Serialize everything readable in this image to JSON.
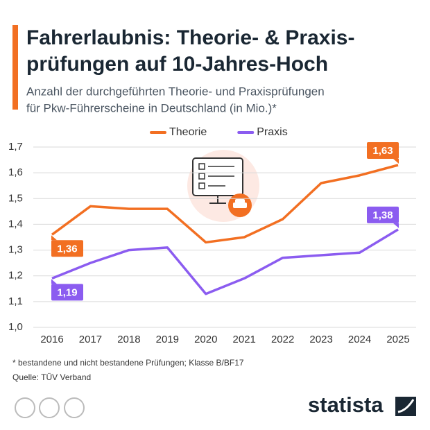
{
  "chart_data": {
    "type": "line",
    "title": [
      "Fahrerlaubnis: Theorie- & Praxis-",
      "prüfungen auf 10-Jahres-Hoch"
    ],
    "subtitle": [
      "Anzahl der durchgeführten Theorie- und Praxisprüfungen",
      "für Pkw-Führerscheine in Deutschland (in Mio.)*"
    ],
    "categories": [
      "2016",
      "2017",
      "2018",
      "2019",
      "2020",
      "2021",
      "2022",
      "2023",
      "2024",
      "2025"
    ],
    "series": [
      {
        "name": "Theorie",
        "color": "#f26f22",
        "values": [
          1.36,
          1.47,
          1.46,
          1.46,
          1.33,
          1.35,
          1.42,
          1.56,
          1.59,
          1.63
        ],
        "value_labels": [
          "1,36",
          null,
          null,
          null,
          null,
          null,
          null,
          null,
          null,
          "1,63"
        ]
      },
      {
        "name": "Praxis",
        "color": "#8b5cf0",
        "values": [
          1.19,
          1.25,
          1.3,
          1.31,
          1.13,
          1.19,
          1.27,
          1.28,
          1.29,
          1.38
        ],
        "value_labels": [
          "1,19",
          null,
          null,
          null,
          null,
          null,
          null,
          null,
          null,
          "1,38"
        ]
      }
    ],
    "ylim": [
      1.0,
      1.7
    ],
    "yticks": [
      {
        "value": 1.0,
        "label": "1,0"
      },
      {
        "value": 1.1,
        "label": "1,1"
      },
      {
        "value": 1.2,
        "label": "1,2"
      },
      {
        "value": 1.3,
        "label": "1,3"
      },
      {
        "value": 1.4,
        "label": "1,4"
      },
      {
        "value": 1.5,
        "label": "1,5"
      },
      {
        "value": 1.6,
        "label": "1,6"
      },
      {
        "value": 1.7,
        "label": "1,7"
      }
    ],
    "grid": true,
    "legend": "top",
    "footnote": "* bestandene und nicht bestandene Prüfungen; Klasse B/BF17",
    "source": "Quelle: TÜV Verband",
    "brand": "statista"
  }
}
